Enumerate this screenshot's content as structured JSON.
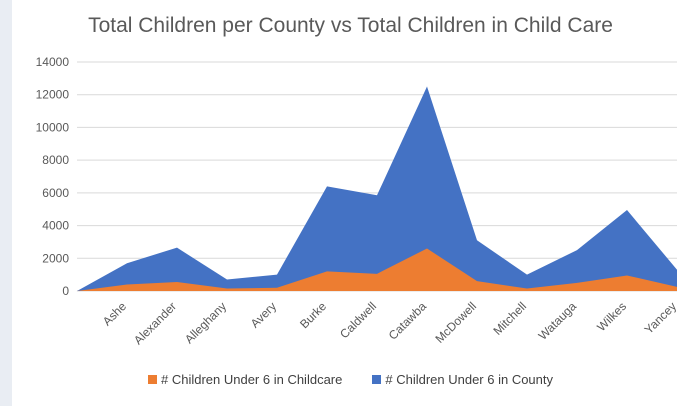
{
  "chart_data": {
    "type": "area",
    "title": "Total Children per County vs Total Children in Child Care",
    "xlabel": "",
    "ylabel": "",
    "ylim": [
      0,
      14000
    ],
    "yticks": [
      0,
      2000,
      4000,
      6000,
      8000,
      10000,
      12000,
      14000
    ],
    "grid": true,
    "legend_position": "bottom",
    "categories": [
      "",
      "Ashe",
      "Alexander",
      "Alleghany",
      "Avery",
      "Burke",
      "Caldwell",
      "Catawba",
      "McDowell",
      "Mitchell",
      "Watauga",
      "Wilkes",
      "Yancey"
    ],
    "series": [
      {
        "name": "# Children Under 6 in County",
        "color": "#4472c4",
        "values": [
          0,
          1700,
          2650,
          700,
          1000,
          6400,
          5850,
          12500,
          3100,
          1000,
          2500,
          4950,
          1300
        ]
      },
      {
        "name": "# Children Under 6 in Childcare",
        "color": "#ed7d31",
        "values": [
          0,
          400,
          550,
          150,
          200,
          1200,
          1050,
          2600,
          600,
          150,
          500,
          950,
          250
        ]
      }
    ]
  }
}
